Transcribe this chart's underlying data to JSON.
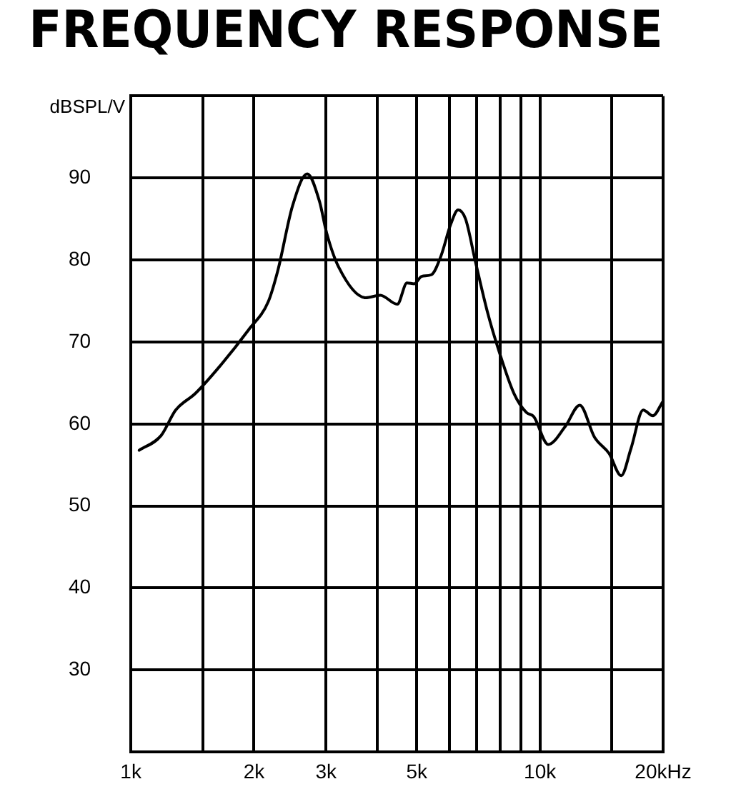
{
  "chart_data": {
    "type": "line",
    "title": "FREQUENCY RESPONSE",
    "ylabel": "dBSPL/V",
    "log": "x",
    "grid": true,
    "legend": false,
    "marker": "none",
    "line_style": "solid",
    "xlim": [
      1,
      20
    ],
    "xticks": [
      {
        "value": 1,
        "label": "1k"
      },
      {
        "value": 1.5,
        "label": null
      },
      {
        "value": 2,
        "label": "2k"
      },
      {
        "value": 3,
        "label": "3k"
      },
      {
        "value": 4,
        "label": null
      },
      {
        "value": 5,
        "label": "5k"
      },
      {
        "value": 6,
        "label": null
      },
      {
        "value": 7,
        "label": null
      },
      {
        "value": 8,
        "label": null
      },
      {
        "value": 9,
        "label": null
      },
      {
        "value": 10,
        "label": "10k"
      },
      {
        "value": 15,
        "label": null
      },
      {
        "value": 20,
        "label": "20kHz"
      }
    ],
    "ylim": [
      20,
      100
    ],
    "yticks": [
      {
        "value": 20,
        "label": null
      },
      30,
      40,
      50,
      60,
      70,
      80,
      90,
      {
        "value": 100,
        "label": null
      }
    ],
    "x": [
      1.048,
      1.186,
      1.287,
      1.436,
      1.647,
      1.941,
      2.166,
      2.289,
      2.484,
      2.698,
      2.889,
      3.01,
      3.223,
      3.75,
      4.07,
      4.48,
      4.731,
      4.93,
      5.138,
      5.428,
      5.73,
      6.056,
      6.31,
      6.578,
      6.946,
      7.437,
      7.962,
      8.643,
      9.265,
      9.658,
      10.476,
      11.53,
      12.51,
      13.59,
      14.76,
      15.8,
      16.69,
      17.88,
      18.88,
      19.95
    ],
    "series": [
      {
        "color": "#000000",
        "values": [
          56.8,
          58.6,
          61.7,
          63.7,
          67.0,
          71.5,
          74.9,
          78.8,
          86.6,
          90.5,
          87.2,
          83.3,
          79.1,
          75.4,
          75.7,
          74.6,
          77.2,
          77.1,
          78.0,
          78.2,
          80.5,
          84.4,
          86.1,
          85.0,
          79.9,
          73.7,
          68.7,
          63.7,
          61.4,
          60.9,
          57.5,
          59.7,
          62.3,
          58.4,
          56.4,
          53.7,
          57.0,
          61.7,
          61.0,
          62.7
        ]
      }
    ]
  }
}
